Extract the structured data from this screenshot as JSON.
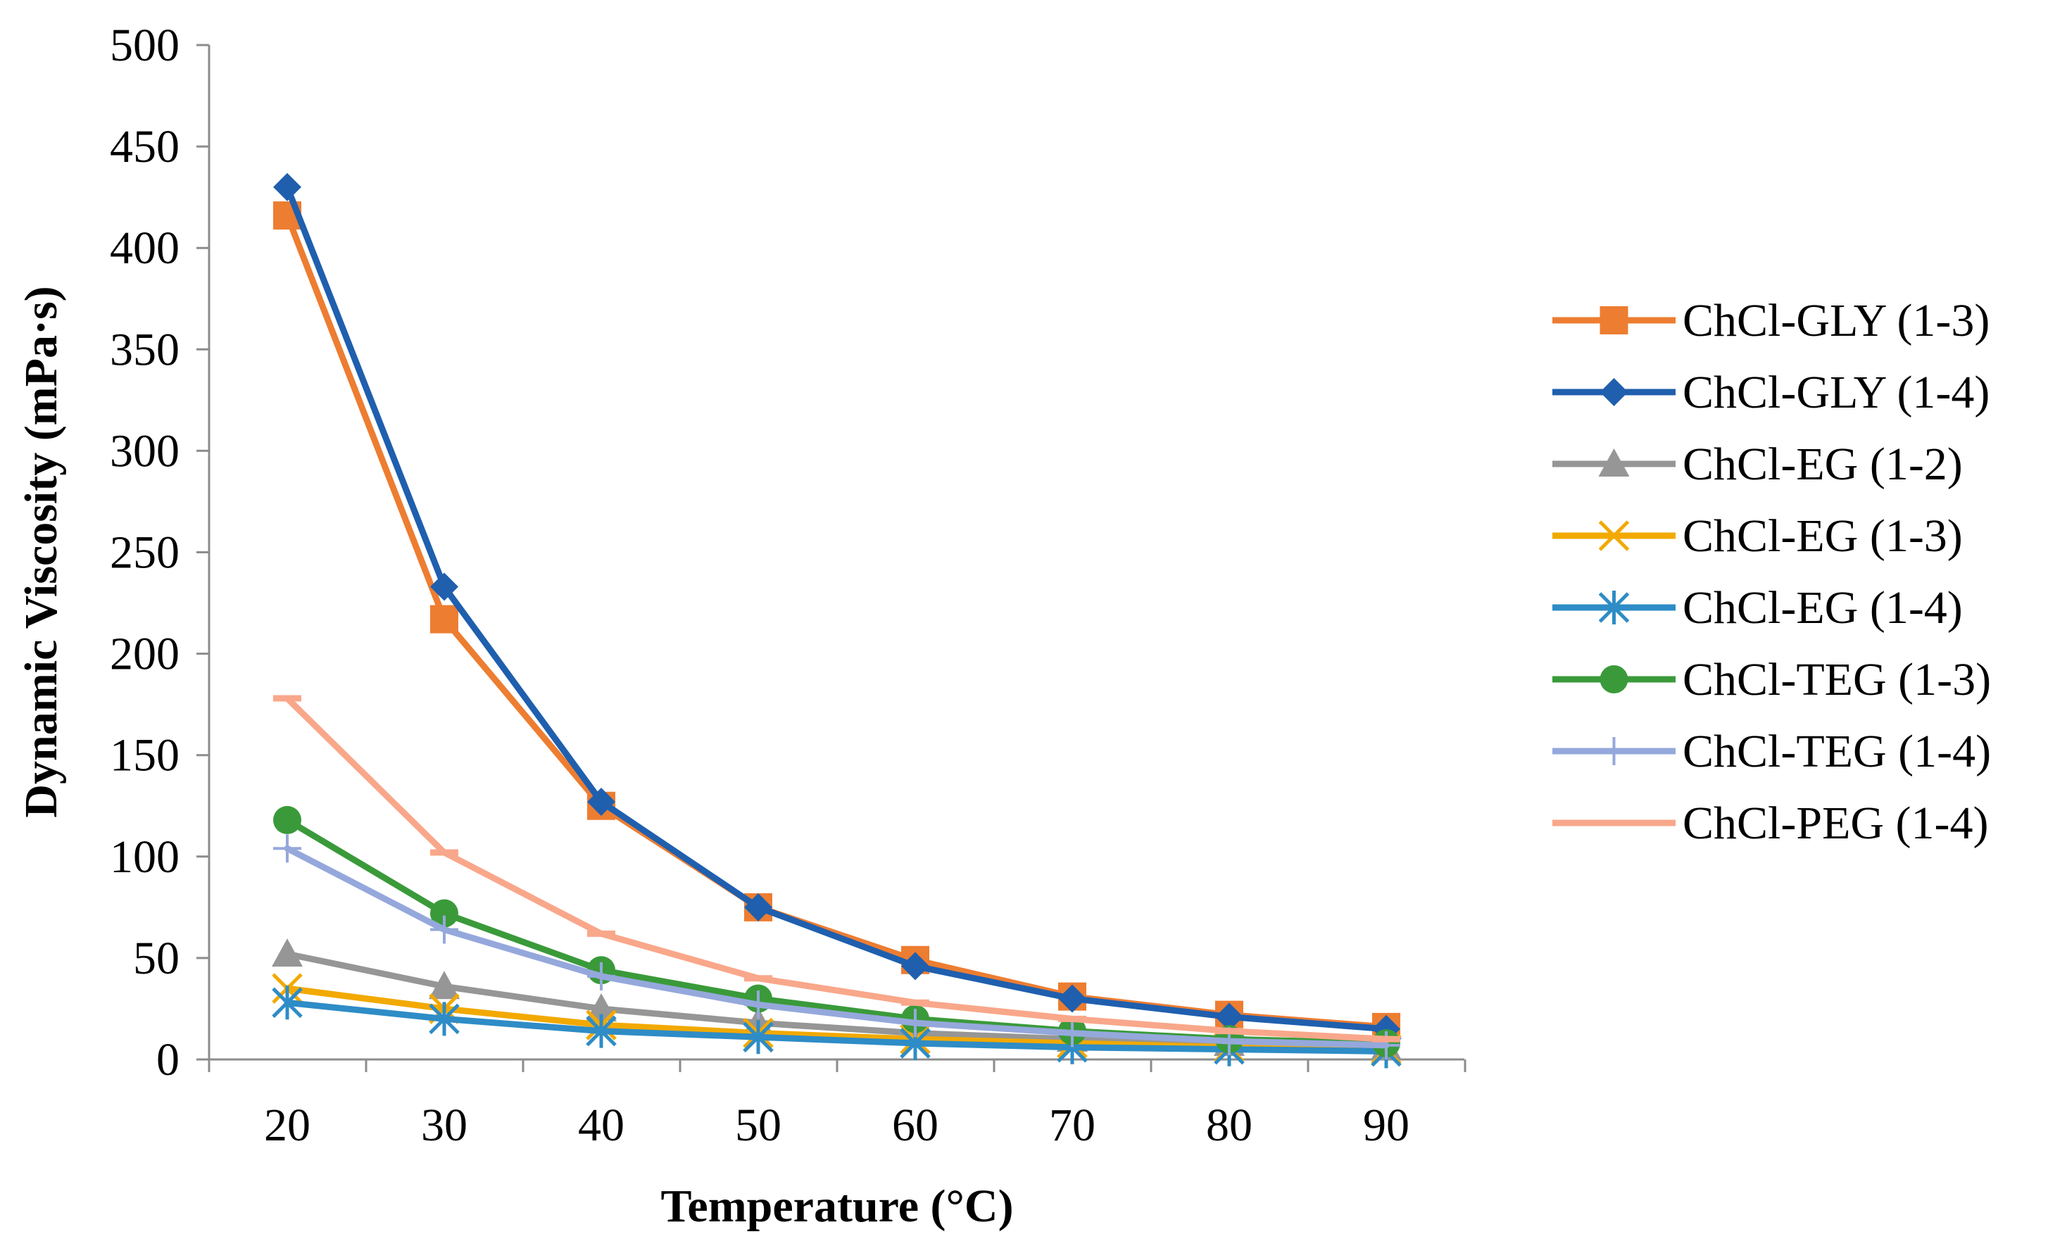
{
  "chart_data": {
    "type": "line",
    "title": "",
    "xlabel": "Temperature (°C)",
    "ylabel": "Dynamic Viscosity (mPa·s)",
    "x": [
      20,
      30,
      40,
      50,
      60,
      70,
      80,
      90
    ],
    "x_tick_labels": [
      "20",
      "30",
      "40",
      "50",
      "60",
      "70",
      "80",
      "90"
    ],
    "ylim": [
      0,
      500
    ],
    "y_ticks": [
      0,
      50,
      100,
      150,
      200,
      250,
      300,
      350,
      400,
      450,
      500
    ],
    "y_tick_labels": [
      "0",
      "50",
      "100",
      "150",
      "200",
      "250",
      "300",
      "350",
      "400",
      "450",
      "500"
    ],
    "grid": false,
    "legend_position": "right",
    "series": [
      {
        "name": "ChCl-GLY (1-3)",
        "color": "#ED7D31",
        "marker": "square",
        "values": [
          416,
          217,
          125,
          75,
          49,
          31,
          22,
          16
        ]
      },
      {
        "name": "ChCl-GLY (1-4)",
        "color": "#1F5FAE",
        "marker": "diamond",
        "values": [
          430,
          233,
          127,
          75,
          46,
          30,
          21,
          15
        ]
      },
      {
        "name": "ChCl-EG (1-2)",
        "color": "#969696",
        "marker": "triangle",
        "values": [
          52,
          36,
          25,
          18,
          13,
          10,
          8,
          6
        ]
      },
      {
        "name": "ChCl-EG (1-3)",
        "color": "#F2A900",
        "marker": "x",
        "values": [
          35,
          25,
          17,
          13,
          10,
          8,
          6,
          5
        ]
      },
      {
        "name": "ChCl-EG (1-4)",
        "color": "#2E8CC6",
        "marker": "star",
        "values": [
          28,
          20,
          14,
          11,
          8,
          6,
          5,
          4
        ]
      },
      {
        "name": "ChCl-TEG (1-3)",
        "color": "#3A9A3A",
        "marker": "circle",
        "values": [
          118,
          72,
          44,
          30,
          20,
          14,
          10,
          8
        ]
      },
      {
        "name": "ChCl-TEG (1-4)",
        "color": "#95A8DC",
        "marker": "plus",
        "values": [
          104,
          64,
          41,
          27,
          18,
          13,
          9,
          7
        ]
      },
      {
        "name": "ChCl-PEG (1-4)",
        "color": "#F9A78A",
        "marker": "dash",
        "values": [
          178,
          102,
          62,
          40,
          28,
          20,
          14,
          10
        ]
      }
    ]
  }
}
